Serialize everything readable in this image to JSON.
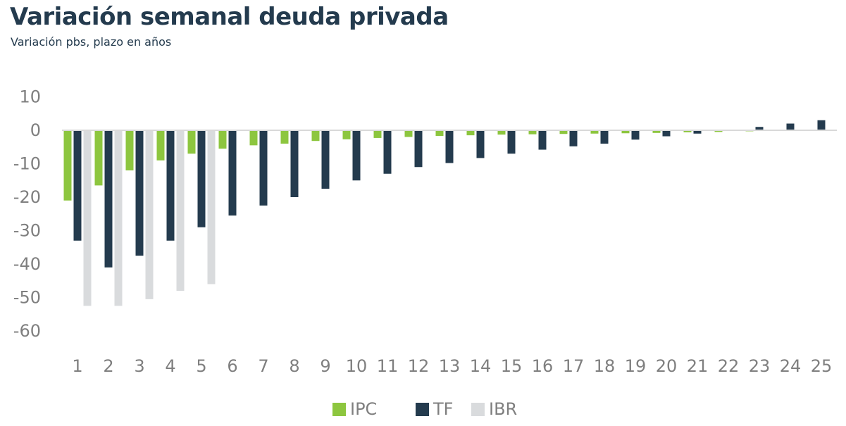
{
  "header": {
    "title": "Variación semanal deuda privada",
    "subtitle": "Variación pbs, plazo en años"
  },
  "chart_data": {
    "type": "bar",
    "title": "Variación semanal deuda privada",
    "subtitle": "Variación pbs, plazo en años",
    "xlabel": "",
    "ylabel": "",
    "ylim": [
      -60,
      10
    ],
    "yticks": [
      10,
      0,
      -10,
      -20,
      -30,
      -40,
      -50,
      -60
    ],
    "grid": false,
    "legend_position": "bottom",
    "categories": [
      "1",
      "2",
      "3",
      "4",
      "5",
      "6",
      "7",
      "8",
      "9",
      "10",
      "11",
      "12",
      "13",
      "14",
      "15",
      "16",
      "17",
      "18",
      "19",
      "20",
      "21",
      "22",
      "23",
      "24",
      "25"
    ],
    "series": [
      {
        "name": "IPC",
        "color": "#8dc63f",
        "values": [
          -21,
          -16.5,
          -12,
          -9,
          -7,
          -5.5,
          -4.5,
          -4,
          -3.2,
          -2.7,
          -2.3,
          -2,
          -1.7,
          -1.5,
          -1.3,
          -1.2,
          -1.1,
          -1,
          -0.9,
          -0.8,
          -0.6,
          -0.5,
          -0.3,
          null,
          null
        ]
      },
      {
        "name": "TF",
        "color": "#243b4e",
        "values": [
          -33,
          -41,
          -37.5,
          -33,
          -29,
          -25.5,
          -22.5,
          -20,
          -17.5,
          -15,
          -13,
          -11,
          -9.8,
          -8.3,
          -7,
          -5.8,
          -4.8,
          -4,
          -2.8,
          -1.8,
          -1,
          null,
          1,
          2,
          3
        ]
      },
      {
        "name": "IBR",
        "color": "#d9dbdd",
        "values": [
          -52.5,
          -52.5,
          -50.5,
          -48,
          -46,
          null,
          null,
          null,
          null,
          null,
          null,
          null,
          null,
          null,
          null,
          null,
          null,
          null,
          null,
          null,
          null,
          null,
          null,
          null,
          null
        ]
      }
    ]
  }
}
